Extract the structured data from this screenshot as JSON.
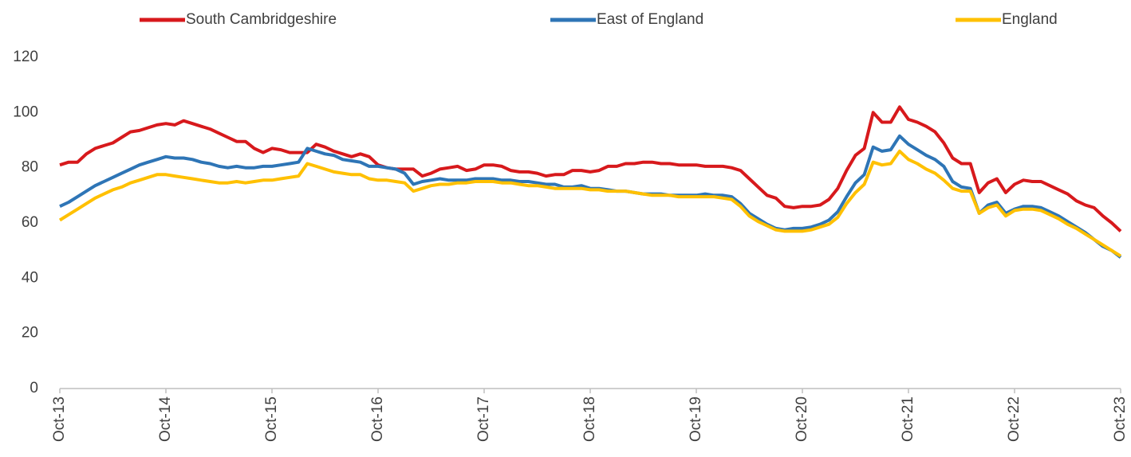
{
  "chart_data": {
    "type": "line",
    "categories": [
      "Oct-13",
      null,
      null,
      null,
      null,
      null,
      null,
      null,
      null,
      null,
      null,
      null,
      "Oct-14",
      null,
      null,
      null,
      null,
      null,
      null,
      null,
      null,
      null,
      null,
      null,
      "Oct-15",
      null,
      null,
      null,
      null,
      null,
      null,
      null,
      null,
      null,
      null,
      null,
      "Oct-16",
      null,
      null,
      null,
      null,
      null,
      null,
      null,
      null,
      null,
      null,
      null,
      "Oct-17",
      null,
      null,
      null,
      null,
      null,
      null,
      null,
      null,
      null,
      null,
      null,
      "Oct-18",
      null,
      null,
      null,
      null,
      null,
      null,
      null,
      null,
      null,
      null,
      null,
      "Oct-19",
      null,
      null,
      null,
      null,
      null,
      null,
      null,
      null,
      null,
      null,
      null,
      "Oct-20",
      null,
      null,
      null,
      null,
      null,
      null,
      null,
      null,
      null,
      null,
      null,
      "Oct-21",
      null,
      null,
      null,
      null,
      null,
      null,
      null,
      null,
      null,
      null,
      null,
      "Oct-22",
      null,
      null,
      null,
      null,
      null,
      null,
      null,
      null,
      null,
      null,
      null,
      "Oct-23"
    ],
    "series": [
      {
        "name": "South Cambridgeshire",
        "color": "#d7191c",
        "values": [
          81,
          82,
          82,
          85,
          87,
          88,
          89,
          91,
          93,
          93.5,
          94.5,
          95.5,
          96,
          95.5,
          97,
          96,
          95,
          94,
          92.5,
          91,
          89.5,
          89.5,
          87,
          85.5,
          87,
          86.5,
          85.5,
          85.5,
          85.5,
          88.5,
          87.5,
          86,
          85,
          84,
          85,
          84,
          81,
          80,
          79.5,
          79.5,
          79.5,
          77,
          78,
          79.5,
          80,
          80.5,
          79,
          79.5,
          81,
          81,
          80.5,
          79,
          78.5,
          78.5,
          78,
          77,
          77.5,
          77.5,
          79,
          79,
          78.5,
          79,
          80.5,
          80.5,
          81.5,
          81.5,
          82,
          82,
          81.5,
          81.5,
          81,
          81,
          81,
          80.5,
          80.5,
          80.5,
          80,
          79,
          76,
          73,
          70,
          69,
          66,
          65.5,
          66,
          66,
          66.5,
          68.5,
          72.5,
          79,
          84.5,
          87,
          100,
          96.5,
          96.5,
          102,
          97.5,
          96.5,
          95,
          93,
          89,
          83.5,
          81.5,
          81.5,
          71,
          74.5,
          76,
          71,
          74,
          75.5,
          75,
          75,
          73.5,
          72,
          70.5,
          68,
          66.5,
          65.5,
          62.5,
          60,
          57
        ]
      },
      {
        "name": "East of England",
        "color": "#2e75b6",
        "values": [
          66,
          67.5,
          69.5,
          71.5,
          73.5,
          75,
          76.5,
          78,
          79.5,
          81,
          82,
          83,
          84,
          83.5,
          83.5,
          83,
          82,
          81.5,
          80.5,
          80,
          80.5,
          80,
          80,
          80.5,
          80.5,
          81,
          81.5,
          82,
          87,
          86,
          85,
          84.5,
          83,
          82.5,
          82,
          80.5,
          80.5,
          80,
          79.5,
          78,
          74,
          75,
          75.5,
          76,
          75.5,
          75.5,
          75.5,
          76,
          76,
          76,
          75.5,
          75.5,
          75,
          75,
          74.5,
          74,
          74,
          73,
          73,
          73.5,
          72.5,
          72.5,
          72,
          71.5,
          71.5,
          71,
          70.5,
          70.5,
          70.5,
          70,
          70,
          70,
          70,
          70.5,
          70,
          70,
          69.5,
          67,
          63.5,
          61.5,
          59.5,
          58,
          57.5,
          58,
          58,
          58.5,
          59.5,
          61,
          64,
          69.5,
          74.5,
          77.5,
          87.5,
          86,
          86.5,
          91.5,
          88.5,
          86.5,
          84.5,
          83,
          80.5,
          75,
          73,
          72.5,
          63.5,
          66.5,
          67.5,
          63.5,
          65,
          66,
          66,
          65.5,
          64,
          62.5,
          60.5,
          58.5,
          56.5,
          54,
          51.5,
          50,
          47.5
        ]
      },
      {
        "name": "England",
        "color": "#ffc000",
        "values": [
          61,
          63,
          65,
          67,
          69,
          70.5,
          72,
          73,
          74.5,
          75.5,
          76.5,
          77.5,
          77.5,
          77,
          76.5,
          76,
          75.5,
          75,
          74.5,
          74.5,
          75,
          74.5,
          75,
          75.5,
          75.5,
          76,
          76.5,
          77,
          81.5,
          80.5,
          79.5,
          78.5,
          78,
          77.5,
          77.5,
          76,
          75.5,
          75.5,
          75,
          74.5,
          71.5,
          72.5,
          73.5,
          74,
          74,
          74.5,
          74.5,
          75,
          75,
          75,
          74.5,
          74.5,
          74,
          73.5,
          73.5,
          73,
          72.5,
          72.5,
          72.5,
          72.5,
          72,
          72,
          71.5,
          71.5,
          71.5,
          71,
          70.5,
          70,
          70,
          70,
          69.5,
          69.5,
          69.5,
          69.5,
          69.5,
          69,
          68.5,
          66,
          62.5,
          60.5,
          59,
          57.5,
          57,
          57,
          57,
          57.5,
          58.5,
          59.5,
          62,
          67,
          71,
          74,
          82,
          81,
          81.5,
          86,
          83,
          81.5,
          79.5,
          78,
          75.5,
          72.5,
          71.5,
          71.5,
          63.5,
          65.5,
          66.5,
          62.5,
          64.5,
          65,
          65,
          64.5,
          63,
          61.5,
          59.5,
          58,
          56,
          54,
          52,
          50,
          48
        ]
      }
    ],
    "ylim": [
      0,
      120
    ],
    "yticks": [
      0,
      20,
      40,
      60,
      80,
      100,
      120
    ],
    "grid": false
  }
}
